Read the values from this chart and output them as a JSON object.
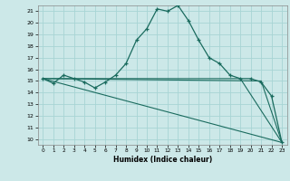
{
  "xlabel": "Humidex (Indice chaleur)",
  "bg_color": "#cce8e8",
  "grid_color": "#a8d4d4",
  "line_color": "#1a6b5e",
  "xlim": [
    -0.5,
    23.5
  ],
  "ylim": [
    9.5,
    21.5
  ],
  "yticks": [
    10,
    11,
    12,
    13,
    14,
    15,
    16,
    17,
    18,
    19,
    20,
    21
  ],
  "xticks": [
    0,
    1,
    2,
    3,
    4,
    5,
    6,
    7,
    8,
    9,
    10,
    11,
    12,
    13,
    14,
    15,
    16,
    17,
    18,
    19,
    20,
    21,
    22,
    23
  ],
  "line1_x": [
    0,
    1,
    2,
    3,
    4,
    5,
    6,
    7,
    8,
    9,
    10,
    11,
    12,
    13,
    14,
    15,
    16,
    17,
    18,
    19,
    20,
    21,
    22,
    23
  ],
  "line1_y": [
    15.2,
    14.8,
    15.5,
    15.2,
    14.9,
    14.4,
    14.9,
    15.5,
    16.5,
    18.5,
    19.5,
    21.2,
    21.0,
    21.5,
    20.2,
    18.5,
    17.0,
    16.5,
    15.5,
    15.2,
    15.2,
    14.9,
    13.7,
    9.7
  ],
  "line2_x": [
    0,
    23
  ],
  "line2_y": [
    15.2,
    9.7
  ],
  "line3_x": [
    0,
    19,
    23
  ],
  "line3_y": [
    15.2,
    15.2,
    9.7
  ],
  "line4_x": [
    0,
    21,
    23
  ],
  "line4_y": [
    15.2,
    15.0,
    9.7
  ]
}
